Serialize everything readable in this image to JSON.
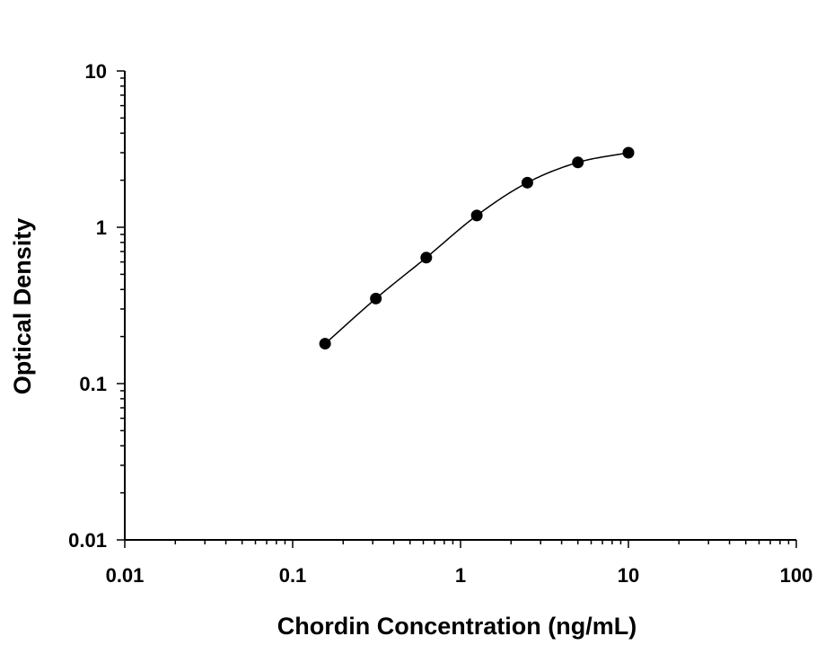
{
  "chart_data": {
    "type": "scatter",
    "title": "",
    "xlabel": "Chordin Concentration (ng/mL)",
    "ylabel": "Optical Density",
    "x_scale": "log",
    "y_scale": "log",
    "xlim": [
      0.01,
      100
    ],
    "ylim": [
      0.01,
      10
    ],
    "x_ticks": [
      "0.01",
      "0.1",
      "1",
      "10",
      "100"
    ],
    "y_ticks": [
      "0.01",
      "0.1",
      "1",
      "10"
    ],
    "grid": false,
    "legend": "none",
    "series": [
      {
        "x": [
          0.156,
          0.313,
          0.625,
          1.25,
          2.5,
          5,
          10
        ],
        "y": [
          0.18,
          0.35,
          0.64,
          1.19,
          1.93,
          2.6,
          3.0
        ],
        "marker": "circle",
        "fit_curve": true,
        "color": "#000000"
      }
    ]
  }
}
